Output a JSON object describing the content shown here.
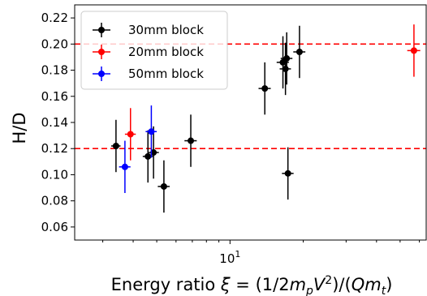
{
  "chart_data": {
    "type": "scatter",
    "xscale": "log",
    "xlim": [
      2.3,
      64
    ],
    "ylim": [
      0.05,
      0.23
    ],
    "xlabel": "Energy ratio ξ = (1/2m_pV²)/(Qm_t)",
    "xlabel_parts": {
      "prefix": "Energy ratio ",
      "xi": "ξ",
      "eq1": " = (1/2",
      "m1": "m",
      "m1_sub": "p",
      "v": "V",
      "v_sup": "2",
      "eq2": ")/(",
      "q": "Q",
      "m2": "m",
      "m2_sub": "t",
      "eq3": ")"
    },
    "ylabel": "H/D",
    "yticks": [
      "0.06",
      "0.08",
      "0.10",
      "0.12",
      "0.14",
      "0.16",
      "0.18",
      "0.20",
      "0.22"
    ],
    "ytick_values": [
      0.06,
      0.08,
      0.1,
      0.12,
      0.14,
      0.16,
      0.18,
      0.2,
      0.22
    ],
    "xticks": [
      {
        "value": 10,
        "base": "10",
        "exp": "1"
      }
    ],
    "grid": false,
    "legend_position": "top-left",
    "reference_lines": [
      {
        "y": 0.2,
        "color": "#ff0000",
        "style": "dashed"
      },
      {
        "y": 0.12,
        "color": "#ff0000",
        "style": "dashed"
      }
    ],
    "series": [
      {
        "name": "30mm block",
        "color": "#000000",
        "points": [
          {
            "x": 3.4,
            "y": 0.122,
            "xerr": 0.15,
            "yerr": 0.02
          },
          {
            "x": 4.6,
            "y": 0.114,
            "xerr": 0.22,
            "yerr": 0.02
          },
          {
            "x": 4.85,
            "y": 0.117,
            "xerr": 0.25,
            "yerr": 0.02
          },
          {
            "x": 5.35,
            "y": 0.091,
            "xerr": 0.3,
            "yerr": 0.02
          },
          {
            "x": 6.9,
            "y": 0.126,
            "xerr": 0.4,
            "yerr": 0.02
          },
          {
            "x": 13.9,
            "y": 0.166,
            "xerr": 0.8,
            "yerr": 0.02
          },
          {
            "x": 16.5,
            "y": 0.186,
            "xerr": 0.95,
            "yerr": 0.02
          },
          {
            "x": 16.9,
            "y": 0.181,
            "xerr": 0.9,
            "yerr": 0.02
          },
          {
            "x": 17.1,
            "y": 0.189,
            "xerr": 0.95,
            "yerr": 0.02
          },
          {
            "x": 17.3,
            "y": 0.101,
            "xerr": 0.95,
            "yerr": 0.02
          },
          {
            "x": 19.3,
            "y": 0.194,
            "xerr": 1.1,
            "yerr": 0.02
          }
        ]
      },
      {
        "name": "20mm block",
        "color": "#ff0000",
        "points": [
          {
            "x": 3.9,
            "y": 0.131,
            "xerr": 0.2,
            "yerr": 0.02
          },
          {
            "x": 57.0,
            "y": 0.195,
            "xerr": 3.5,
            "yerr": 0.02
          }
        ]
      },
      {
        "name": "50mm block",
        "color": "#0000ff",
        "points": [
          {
            "x": 3.7,
            "y": 0.106,
            "xerr": 0.2,
            "yerr": 0.02
          },
          {
            "x": 4.75,
            "y": 0.133,
            "xerr": 0.25,
            "yerr": 0.02
          }
        ]
      }
    ]
  }
}
